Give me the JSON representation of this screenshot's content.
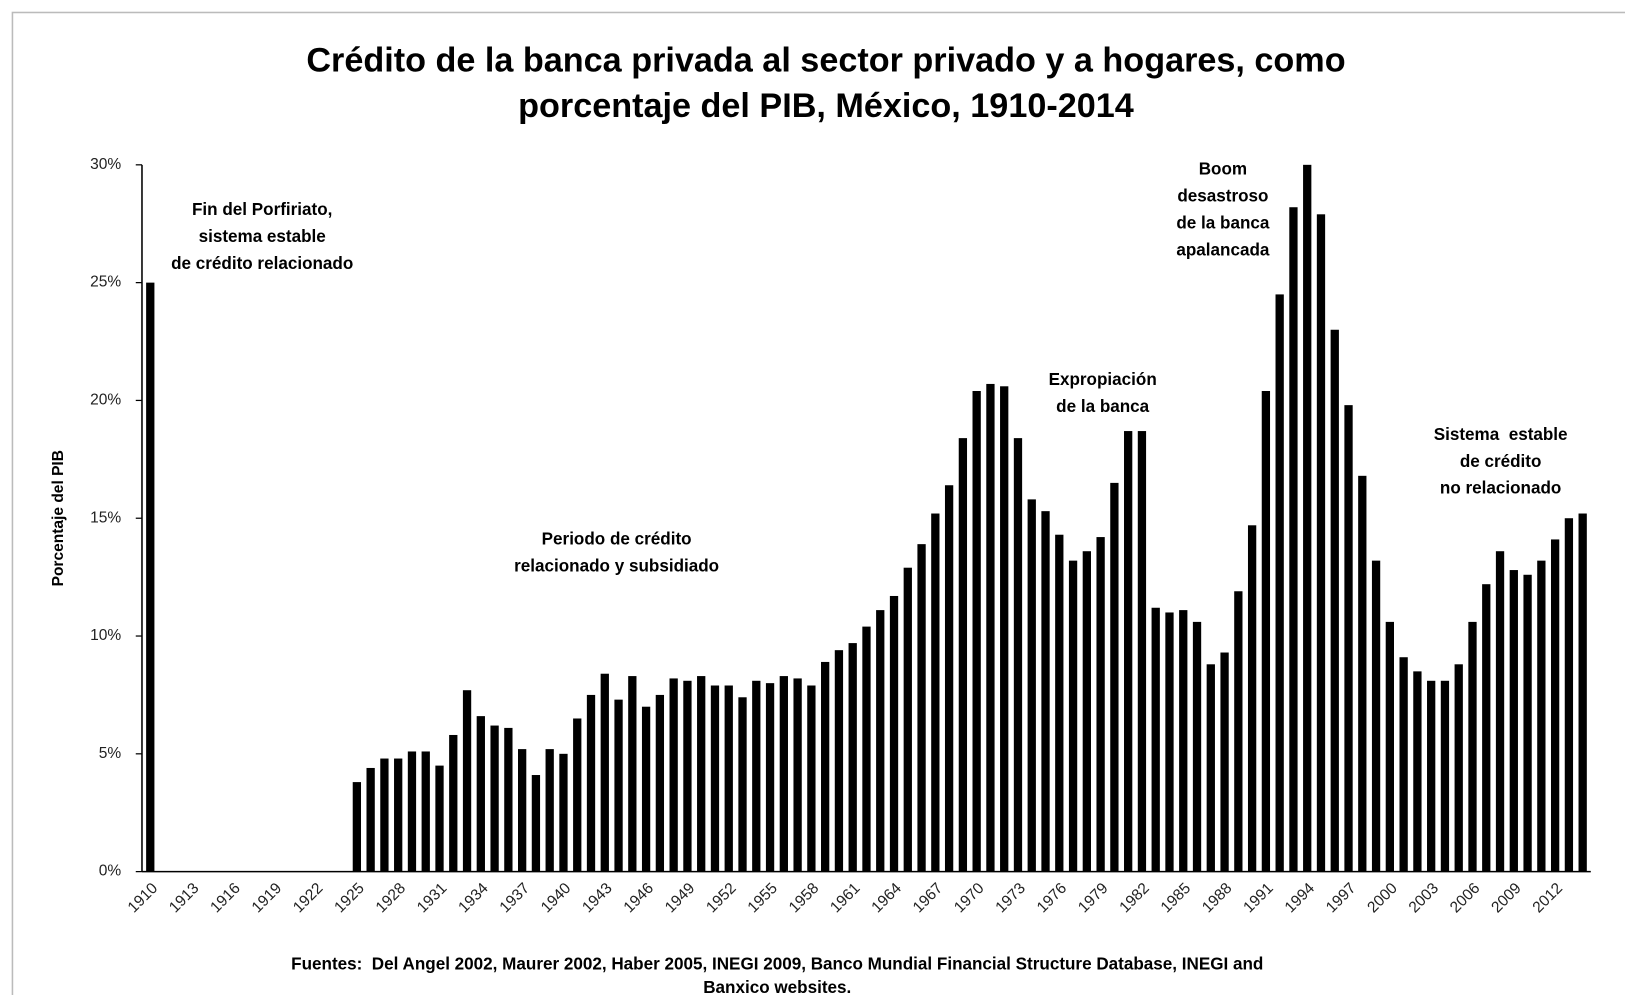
{
  "chart_data": {
    "type": "bar",
    "title": [
      "Crédito de la banca privada al sector privado y a hogares, como",
      "porcentaje del PIB, México, 1910-2014"
    ],
    "y_label": "Porcentaje del PIB",
    "source": [
      "Fuentes:  Del Angel 2002, Maurer 2002, Haber 2005, INEGI 2009, Banco Mundial Financial Structure Database, INEGI and",
      "Banxico websites."
    ],
    "annotations": [
      [
        "Fin del Porfiriato,",
        "sistema estable",
        "de crédito relacionado"
      ],
      [
        "Periodo de crédito",
        "relacionado y subsidiado"
      ],
      [
        "Expropiación",
        "de la banca"
      ],
      [
        "Boom",
        "desastroso",
        "de la banca",
        "apalancada"
      ],
      [
        "Sistema  estable",
        "de crédito",
        "no relacionado"
      ]
    ],
    "categories": [
      "1910",
      null,
      null,
      "1913",
      null,
      null,
      "1916",
      null,
      null,
      "1919",
      null,
      null,
      "1922",
      null,
      null,
      "1925",
      null,
      null,
      "1928",
      null,
      null,
      "1931",
      null,
      null,
      "1934",
      null,
      null,
      "1937",
      null,
      null,
      "1940",
      null,
      null,
      "1943",
      null,
      null,
      "1946",
      null,
      null,
      "1949",
      null,
      null,
      "1952",
      null,
      null,
      "1955",
      null,
      null,
      "1958",
      null,
      null,
      "1961",
      null,
      null,
      "1964",
      null,
      null,
      "1967",
      null,
      null,
      "1970",
      null,
      null,
      "1973",
      null,
      null,
      "1976",
      null,
      null,
      "1979",
      null,
      null,
      "1982",
      null,
      null,
      "1985",
      null,
      null,
      "1988",
      null,
      null,
      "1991",
      null,
      null,
      "1994",
      null,
      null,
      "1997",
      null,
      null,
      "2000",
      null,
      null,
      "2003",
      null,
      null,
      "2006",
      null,
      null,
      "2009",
      null,
      null,
      "2012",
      null,
      null
    ],
    "values": [
      25,
      null,
      null,
      null,
      null,
      null,
      null,
      null,
      null,
      null,
      null,
      null,
      null,
      null,
      null,
      3.8,
      4.4,
      4.8,
      4.8,
      5.1,
      5.1,
      4.5,
      5.8,
      7.7,
      6.6,
      6.2,
      6.1,
      5.2,
      4.1,
      5.2,
      5.0,
      6.5,
      7.5,
      8.4,
      7.3,
      8.3,
      7.0,
      7.5,
      8.2,
      8.1,
      8.3,
      7.9,
      7.9,
      7.4,
      8.1,
      8.0,
      8.3,
      8.2,
      7.9,
      8.9,
      9.4,
      9.7,
      10.4,
      11.1,
      11.7,
      12.9,
      13.9,
      15.2,
      16.4,
      18.4,
      20.4,
      20.7,
      20.6,
      18.4,
      15.8,
      15.3,
      14.3,
      13.2,
      13.6,
      14.2,
      16.5,
      18.7,
      18.7,
      11.2,
      11.0,
      11.1,
      10.6,
      8.8,
      9.3,
      11.9,
      14.7,
      20.4,
      24.5,
      28.2,
      30.0,
      27.9,
      23.0,
      19.8,
      16.8,
      13.2,
      10.6,
      9.1,
      8.5,
      8.1,
      8.1,
      8.8,
      10.6,
      12.2,
      13.6,
      12.8,
      12.6,
      13.2,
      14.1,
      15.0,
      15.2
    ],
    "color": "#000000",
    "ylim": [
      0,
      30
    ],
    "yticks": [
      {
        "value": 0,
        "label": "0%"
      },
      {
        "value": 5,
        "label": "5%"
      },
      {
        "value": 10,
        "label": "10%"
      },
      {
        "value": 15,
        "label": "15%"
      },
      {
        "value": 20,
        "label": "20%"
      },
      {
        "value": 25,
        "label": "25%"
      },
      {
        "value": 30,
        "label": "30%"
      }
    ],
    "grid": false
  }
}
